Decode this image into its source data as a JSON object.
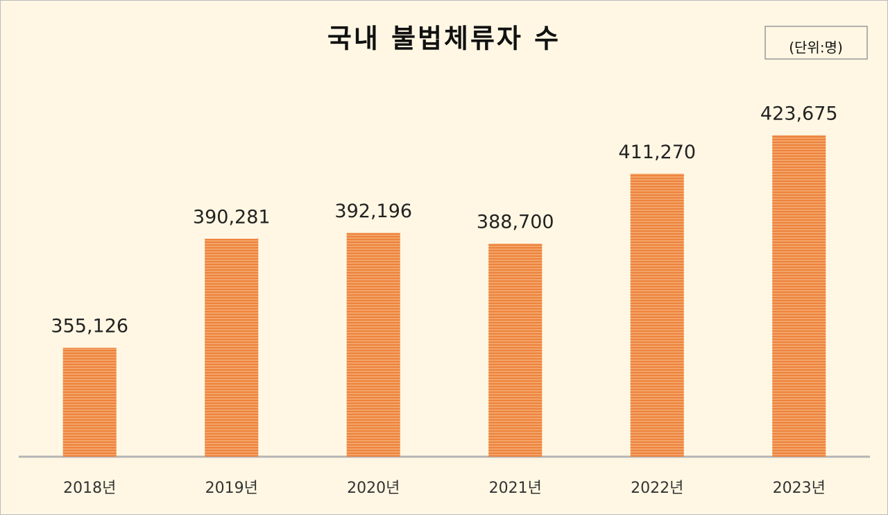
{
  "chart_data": {
    "type": "bar",
    "title": "국내 불법체류자 수",
    "unit_note": "(단위:명)",
    "categories": [
      "2018년",
      "2019년",
      "2020년",
      "2021년",
      "2022년",
      "2023년"
    ],
    "values": [
      355126,
      390281,
      392196,
      388700,
      411270,
      423675
    ],
    "value_labels": [
      "355,126",
      "390,281",
      "392,196",
      "388,700",
      "411,270",
      "423,675"
    ],
    "color": "#f4a468",
    "ylim": [
      320000,
      440000
    ]
  }
}
